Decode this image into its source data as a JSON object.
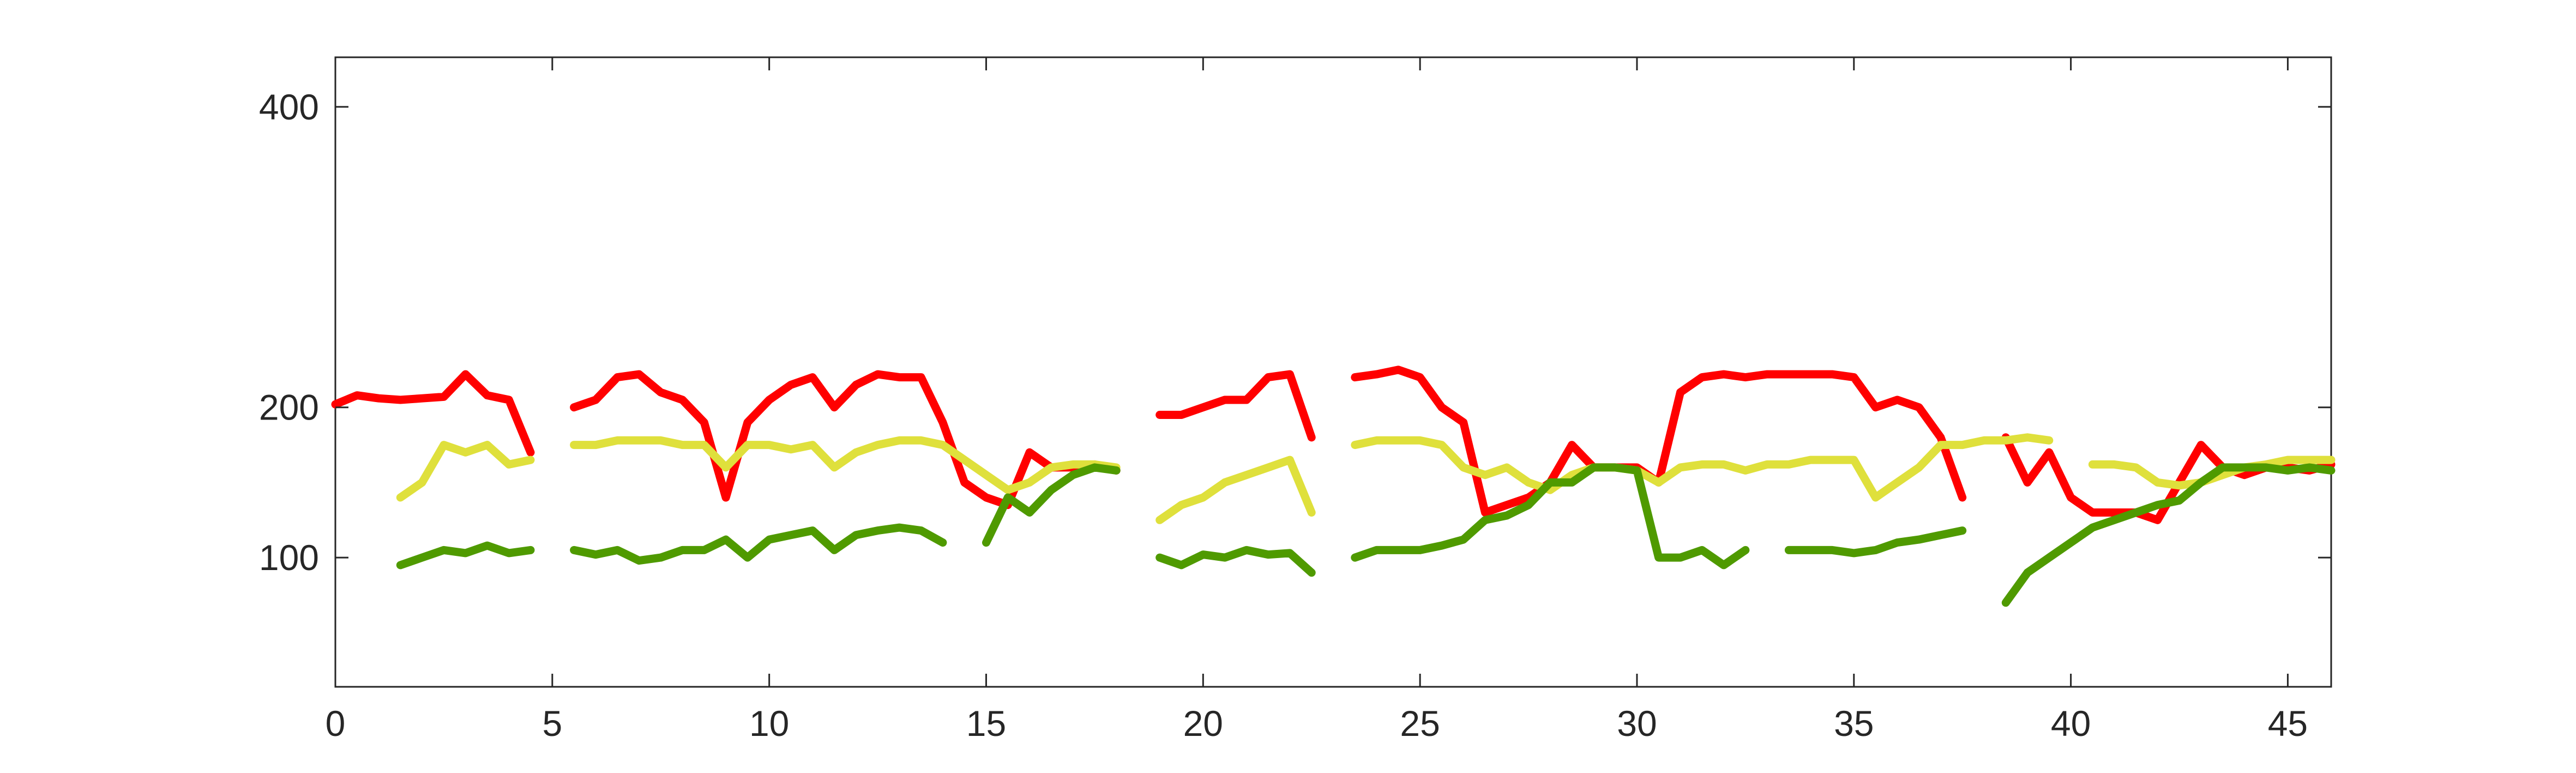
{
  "chart_data": {
    "type": "line",
    "x": [
      0,
      0.5,
      1,
      1.5,
      2,
      2.5,
      3,
      3.5,
      4,
      4.5,
      5,
      5.5,
      6,
      6.5,
      7,
      7.5,
      8,
      8.5,
      9,
      9.5,
      10,
      10.5,
      11,
      11.5,
      12,
      12.5,
      13,
      13.5,
      14,
      14.5,
      15,
      15.5,
      16,
      16.5,
      17,
      17.5,
      18,
      18.5,
      19,
      19.5,
      20,
      20.5,
      21,
      21.5,
      22,
      22.5,
      23,
      23.5,
      24,
      24.5,
      25,
      25.5,
      26,
      26.5,
      27,
      27.5,
      28,
      28.5,
      29,
      29.5,
      30,
      30.5,
      31,
      31.5,
      32,
      32.5,
      33,
      33.5,
      34,
      34.5,
      35,
      35.5,
      36,
      36.5,
      37,
      37.5,
      38,
      38.5,
      39,
      39.5,
      40,
      40.5,
      41,
      41.5,
      42,
      42.5,
      43,
      43.5,
      44,
      44.5,
      45,
      45.5,
      46
    ],
    "series": [
      {
        "color": "#ff0000",
        "values": [
          202,
          208,
          206,
          205,
          206,
          207,
          222,
          208,
          205,
          170,
          null,
          200,
          205,
          220,
          222,
          210,
          205,
          190,
          140,
          190,
          205,
          215,
          220,
          200,
          215,
          222,
          220,
          220,
          190,
          150,
          140,
          135,
          170,
          160,
          160,
          162,
          158,
          null,
          195,
          195,
          200,
          205,
          205,
          220,
          222,
          180,
          null,
          220,
          222,
          225,
          220,
          200,
          190,
          130,
          135,
          140,
          150,
          175,
          160,
          160,
          160,
          150,
          210,
          220,
          222,
          220,
          222,
          222,
          222,
          222,
          220,
          200,
          205,
          200,
          180,
          140,
          null,
          180,
          150,
          170,
          140,
          130,
          130,
          130,
          125,
          150,
          175,
          160,
          155,
          160,
          160,
          158,
          162
        ]
      },
      {
        "color": "#dfe03c",
        "values": [
          null,
          null,
          null,
          140,
          150,
          175,
          170,
          175,
          162,
          165,
          null,
          175,
          175,
          178,
          178,
          178,
          175,
          175,
          160,
          175,
          175,
          172,
          175,
          160,
          170,
          175,
          178,
          178,
          175,
          165,
          155,
          145,
          150,
          160,
          162,
          162,
          160,
          null,
          125,
          135,
          140,
          150,
          155,
          160,
          165,
          130,
          null,
          175,
          178,
          178,
          178,
          175,
          160,
          155,
          160,
          150,
          145,
          155,
          160,
          160,
          158,
          150,
          160,
          162,
          162,
          158,
          162,
          162,
          165,
          165,
          165,
          140,
          150,
          160,
          175,
          175,
          178,
          178,
          180,
          178,
          null,
          162,
          162,
          160,
          150,
          148,
          150,
          155,
          160,
          162,
          165,
          165,
          165
        ]
      },
      {
        "color": "#4f9a00",
        "values": [
          null,
          null,
          null,
          95,
          100,
          105,
          103,
          108,
          103,
          105,
          null,
          105,
          102,
          105,
          98,
          100,
          105,
          105,
          112,
          100,
          112,
          115,
          118,
          105,
          115,
          118,
          120,
          118,
          110,
          null,
          110,
          140,
          130,
          145,
          155,
          160,
          158,
          null,
          100,
          95,
          102,
          100,
          105,
          102,
          103,
          90,
          null,
          100,
          105,
          105,
          105,
          108,
          112,
          125,
          128,
          135,
          150,
          150,
          160,
          160,
          158,
          100,
          100,
          105,
          95,
          105,
          null,
          105,
          105,
          105,
          103,
          105,
          110,
          112,
          115,
          118,
          null,
          70,
          90,
          100,
          110,
          120,
          125,
          130,
          135,
          138,
          150,
          160,
          160,
          160,
          158,
          160,
          158
        ]
      }
    ],
    "xlim": [
      0,
      46
    ],
    "xticks": [
      0,
      5,
      10,
      15,
      20,
      25,
      30,
      35,
      40,
      45
    ],
    "ylim": [
      14,
      433
    ],
    "yticks": [
      100,
      200,
      400
    ]
  }
}
